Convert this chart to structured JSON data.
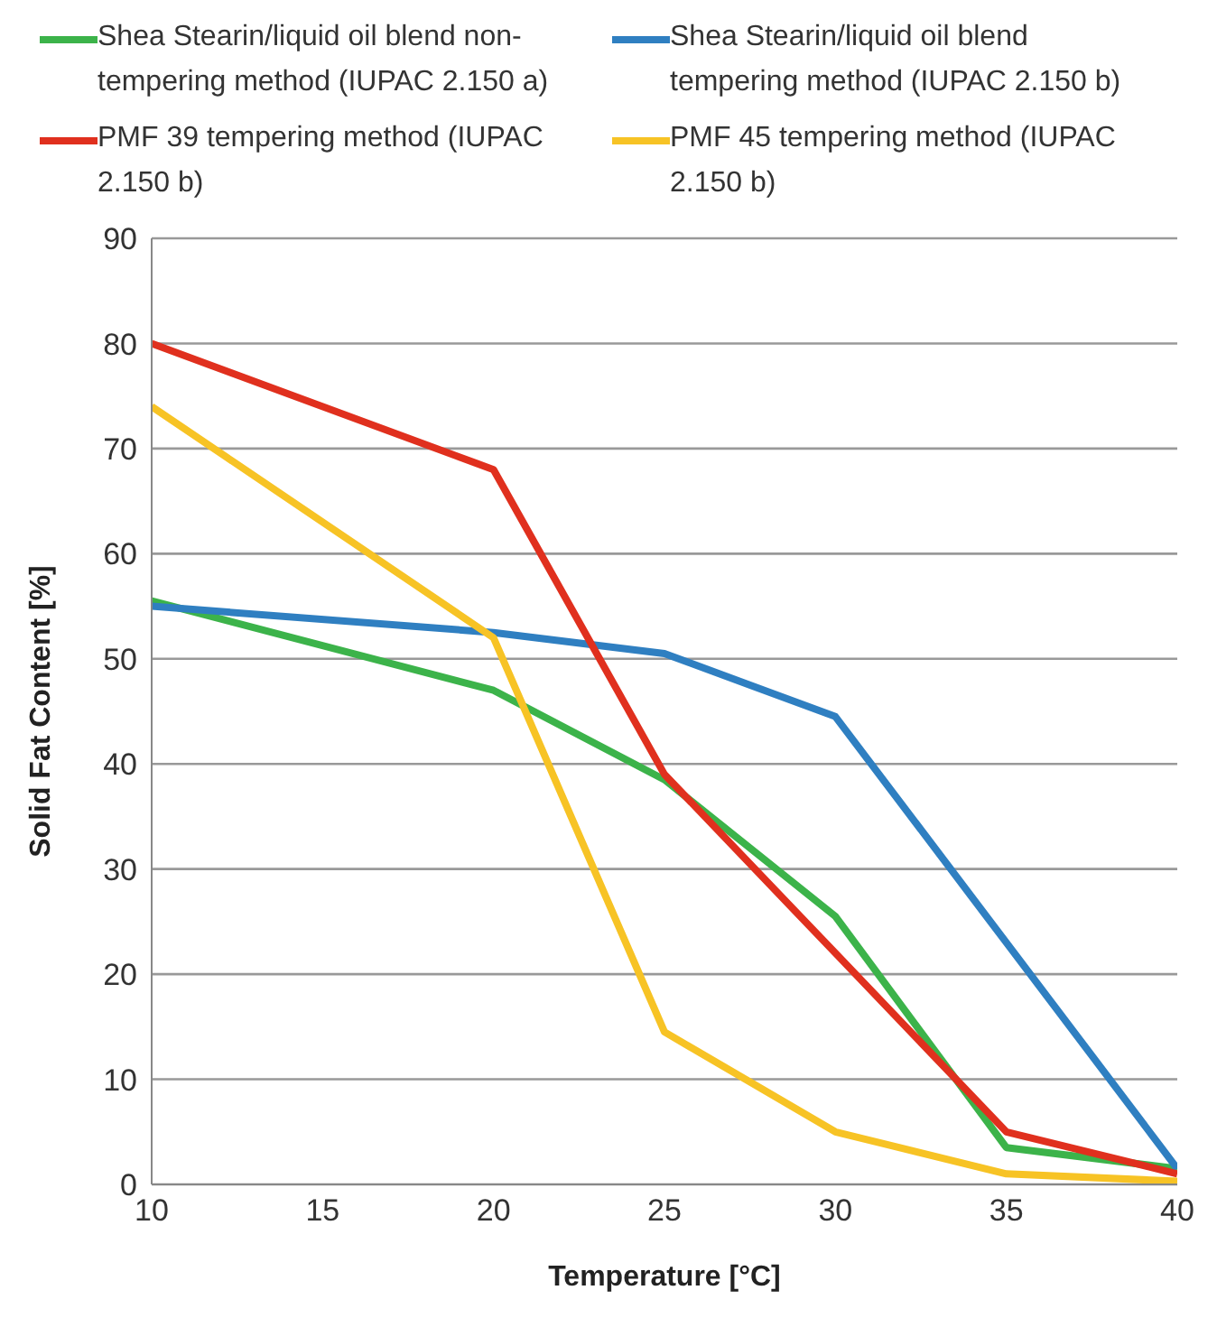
{
  "chart_data": {
    "type": "line",
    "xlabel": "Temperature [°C]",
    "ylabel": "Solid Fat Content  [%]",
    "x": [
      10,
      20,
      25,
      30,
      35,
      40
    ],
    "series": [
      {
        "name": "Shea Stearin/liquid oil blend non-tempering method (IUPAC 2.150 a)",
        "color": "#3cb34a",
        "values": [
          55.5,
          47,
          38.5,
          25.5,
          3.5,
          1.5
        ]
      },
      {
        "name": "Shea Stearin/liquid oil blend tempering method (IUPAC 2.150 b)",
        "color": "#2f7fc1",
        "values": [
          55,
          52.5,
          50.5,
          44.5,
          23,
          1.5
        ]
      },
      {
        "name": "PMF 39 tempering method (IUPAC 2.150 b)",
        "color": "#e0301e",
        "values": [
          80,
          68,
          39,
          22,
          5,
          1
        ]
      },
      {
        "name": "PMF 45 tempering method (IUPAC 2.150 b)",
        "color": "#f7c325",
        "values": [
          74,
          52,
          14.5,
          5,
          1,
          0.3
        ]
      }
    ],
    "xlim": [
      10,
      40
    ],
    "xticks": [
      10,
      15,
      20,
      25,
      30,
      35,
      40
    ],
    "ylim": [
      0,
      90
    ],
    "yticks": [
      0,
      10,
      20,
      30,
      40,
      50,
      60,
      70,
      80,
      90
    ],
    "grid": "y",
    "legend": "top",
    "marker": "none",
    "line_style": "solid"
  }
}
